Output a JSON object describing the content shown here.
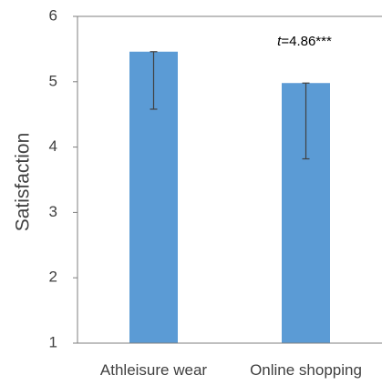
{
  "chart_data": {
    "type": "bar",
    "categories": [
      "Athleisure wear",
      "Online shopping"
    ],
    "values": [
      5.46,
      4.98
    ],
    "error_bars": {
      "lower": [
        4.58,
        3.82
      ],
      "upper": [
        5.46,
        4.98
      ]
    },
    "ylabel": "Satisfaction",
    "xlabel": "",
    "ylim": [
      1,
      6
    ],
    "yticks": [
      "1",
      "2",
      "3",
      "4",
      "5",
      "6"
    ],
    "grid": false,
    "legend": "none",
    "annotation": {
      "italic_part": "t",
      "rest": "=4.86***"
    },
    "colors": {
      "bar": "#5b9bd5",
      "error_bar": "#404040",
      "axis": "#7f7f7f",
      "text": "#404040"
    }
  }
}
